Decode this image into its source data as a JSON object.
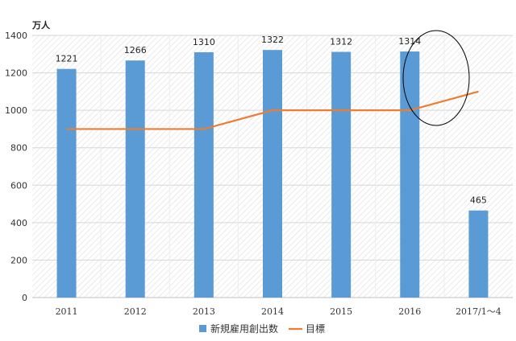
{
  "chart_data": {
    "type": "bar",
    "categories": [
      "2011",
      "2012",
      "2013",
      "2014",
      "2015",
      "2016",
      "2017/1～4"
    ],
    "y_unit": "万人",
    "ylim": [
      0,
      1400
    ],
    "yticks": [
      0,
      200,
      400,
      600,
      800,
      1000,
      1200,
      1400
    ],
    "grid": "horizontal",
    "background": "hatched",
    "series": [
      {
        "name": "新規雇用創出数",
        "type": "bar",
        "color": "#5b9bd5",
        "values": [
          1221,
          1266,
          1310,
          1322,
          1312,
          1314,
          465
        ],
        "labels": [
          "1221",
          "1266",
          "1310",
          "1322",
          "1312",
          "1314",
          "465"
        ]
      },
      {
        "name": "目標",
        "type": "line",
        "color": "#ed7d31",
        "values": [
          900,
          900,
          900,
          1000,
          1000,
          1000,
          1100
        ]
      }
    ],
    "annotation": {
      "type": "ellipse",
      "around": [
        "2016",
        "2017/1～4"
      ],
      "color": "#000000"
    },
    "legend_position": "bottom-center"
  }
}
